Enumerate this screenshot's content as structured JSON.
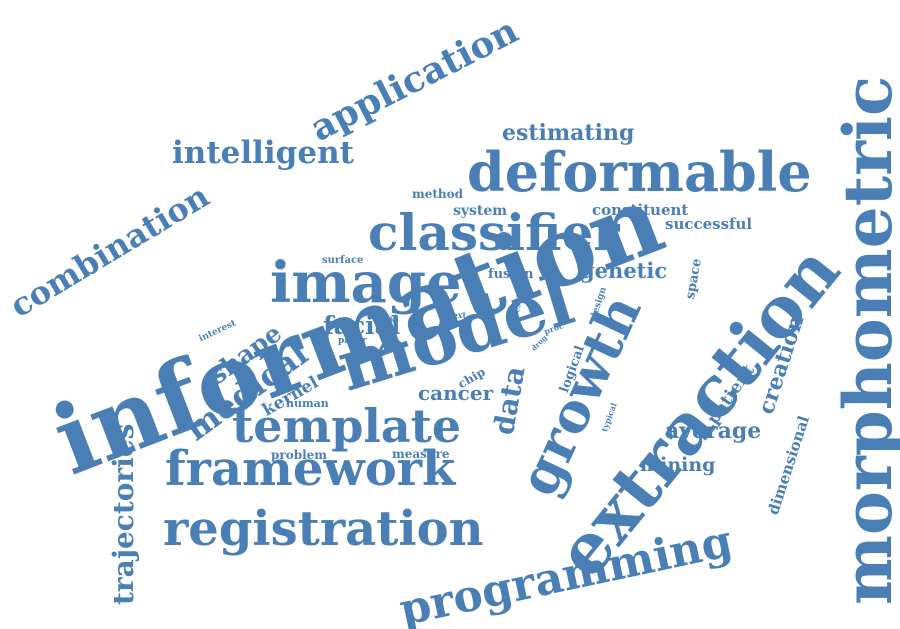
{
  "color": "#4a7fb5",
  "words": [
    {
      "id": "information",
      "text": "information"
    },
    {
      "id": "morphometric",
      "text": "morphometric"
    },
    {
      "id": "extraction",
      "text": "extraction"
    },
    {
      "id": "model",
      "text": "model"
    },
    {
      "id": "image",
      "text": "image"
    },
    {
      "id": "classifier",
      "text": "classifier"
    },
    {
      "id": "deformable",
      "text": "deformable"
    },
    {
      "id": "registration",
      "text": "registration"
    },
    {
      "id": "framework",
      "text": "framework"
    },
    {
      "id": "template",
      "text": "template"
    },
    {
      "id": "growth",
      "text": "growth"
    },
    {
      "id": "programming",
      "text": "programming"
    },
    {
      "id": "application",
      "text": "application"
    },
    {
      "id": "combination",
      "text": "combination"
    },
    {
      "id": "intelligent",
      "text": "intelligent"
    },
    {
      "id": "estimating",
      "text": "estimating"
    },
    {
      "id": "trajectories",
      "text": "trajectories"
    },
    {
      "id": "medical",
      "text": "medical"
    },
    {
      "id": "facial",
      "text": "facial"
    },
    {
      "id": "data",
      "text": "data"
    },
    {
      "id": "shape",
      "text": "shape"
    },
    {
      "id": "genetic",
      "text": "genetic"
    },
    {
      "id": "creation",
      "text": "creation"
    },
    {
      "id": "average",
      "text": "average"
    },
    {
      "id": "mining",
      "text": "mining"
    },
    {
      "id": "cancer",
      "text": "cancer"
    },
    {
      "id": "patient",
      "text": "patient"
    },
    {
      "id": "dimensional",
      "text": "dimensional"
    },
    {
      "id": "kernel",
      "text": "kernel"
    },
    {
      "id": "space",
      "text": "space"
    },
    {
      "id": "constituent",
      "text": "constituent"
    },
    {
      "id": "successful",
      "text": "successful"
    },
    {
      "id": "system",
      "text": "system"
    },
    {
      "id": "method",
      "text": "method"
    },
    {
      "id": "fusion",
      "text": "fusion"
    },
    {
      "id": "logical",
      "text": "logical"
    },
    {
      "id": "measure",
      "text": "measure"
    },
    {
      "id": "problem",
      "text": "problem"
    },
    {
      "id": "human",
      "text": "human"
    },
    {
      "id": "chip",
      "text": "chip"
    },
    {
      "id": "surface",
      "text": "surface"
    },
    {
      "id": "interest",
      "text": "interest"
    },
    {
      "id": "paper",
      "text": "paper"
    },
    {
      "id": "design",
      "text": "design"
    },
    {
      "id": "typical",
      "text": "typical"
    },
    {
      "id": "result",
      "text": "result"
    },
    {
      "id": "task",
      "text": "task"
    },
    {
      "id": "text",
      "text": "text"
    },
    {
      "id": "face",
      "text": "face"
    },
    {
      "id": "drug",
      "text": "drug"
    },
    {
      "id": "proc",
      "text": "proc"
    }
  ]
}
